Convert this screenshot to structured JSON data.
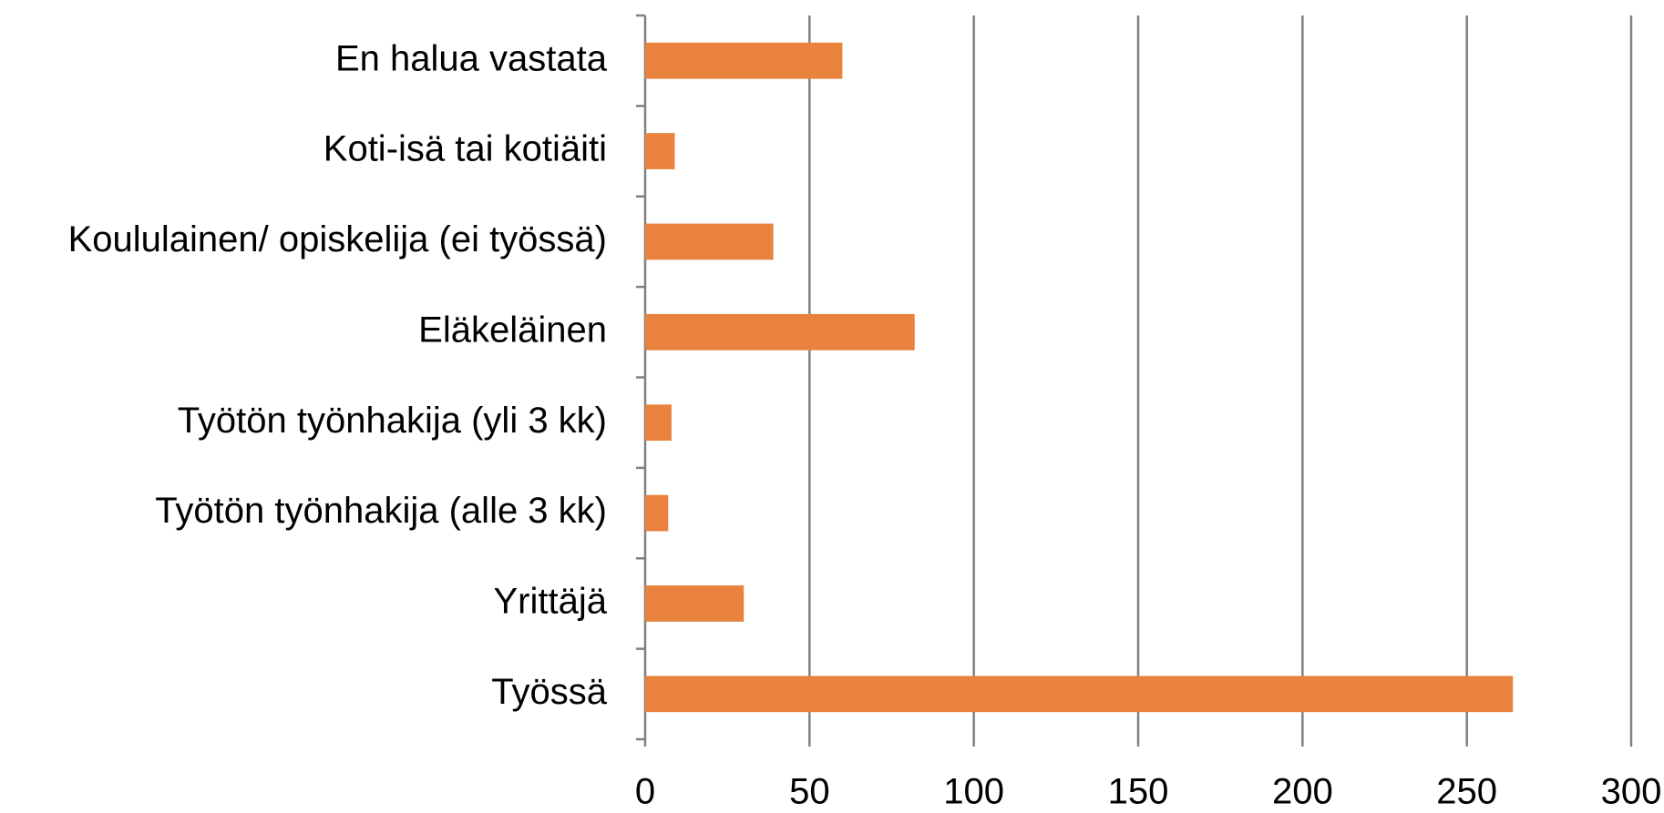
{
  "chart_data": {
    "type": "bar",
    "orientation": "horizontal",
    "categories": [
      "En halua vastata",
      "Koti-isä tai kotiäiti",
      "Koululainen/ opiskelija (ei työssä)",
      "Eläkeläinen",
      "Työtön työnhakija (yli 3 kk)",
      "Työtön työnhakija (alle 3 kk)",
      "Yrittäjä",
      "Työssä"
    ],
    "values": [
      60,
      9,
      39,
      82,
      8,
      7,
      30,
      264
    ],
    "color": "#e8823c",
    "xlim": [
      0,
      300
    ],
    "xticks": [
      0,
      50,
      100,
      150,
      200,
      250,
      300
    ],
    "grid": true
  }
}
